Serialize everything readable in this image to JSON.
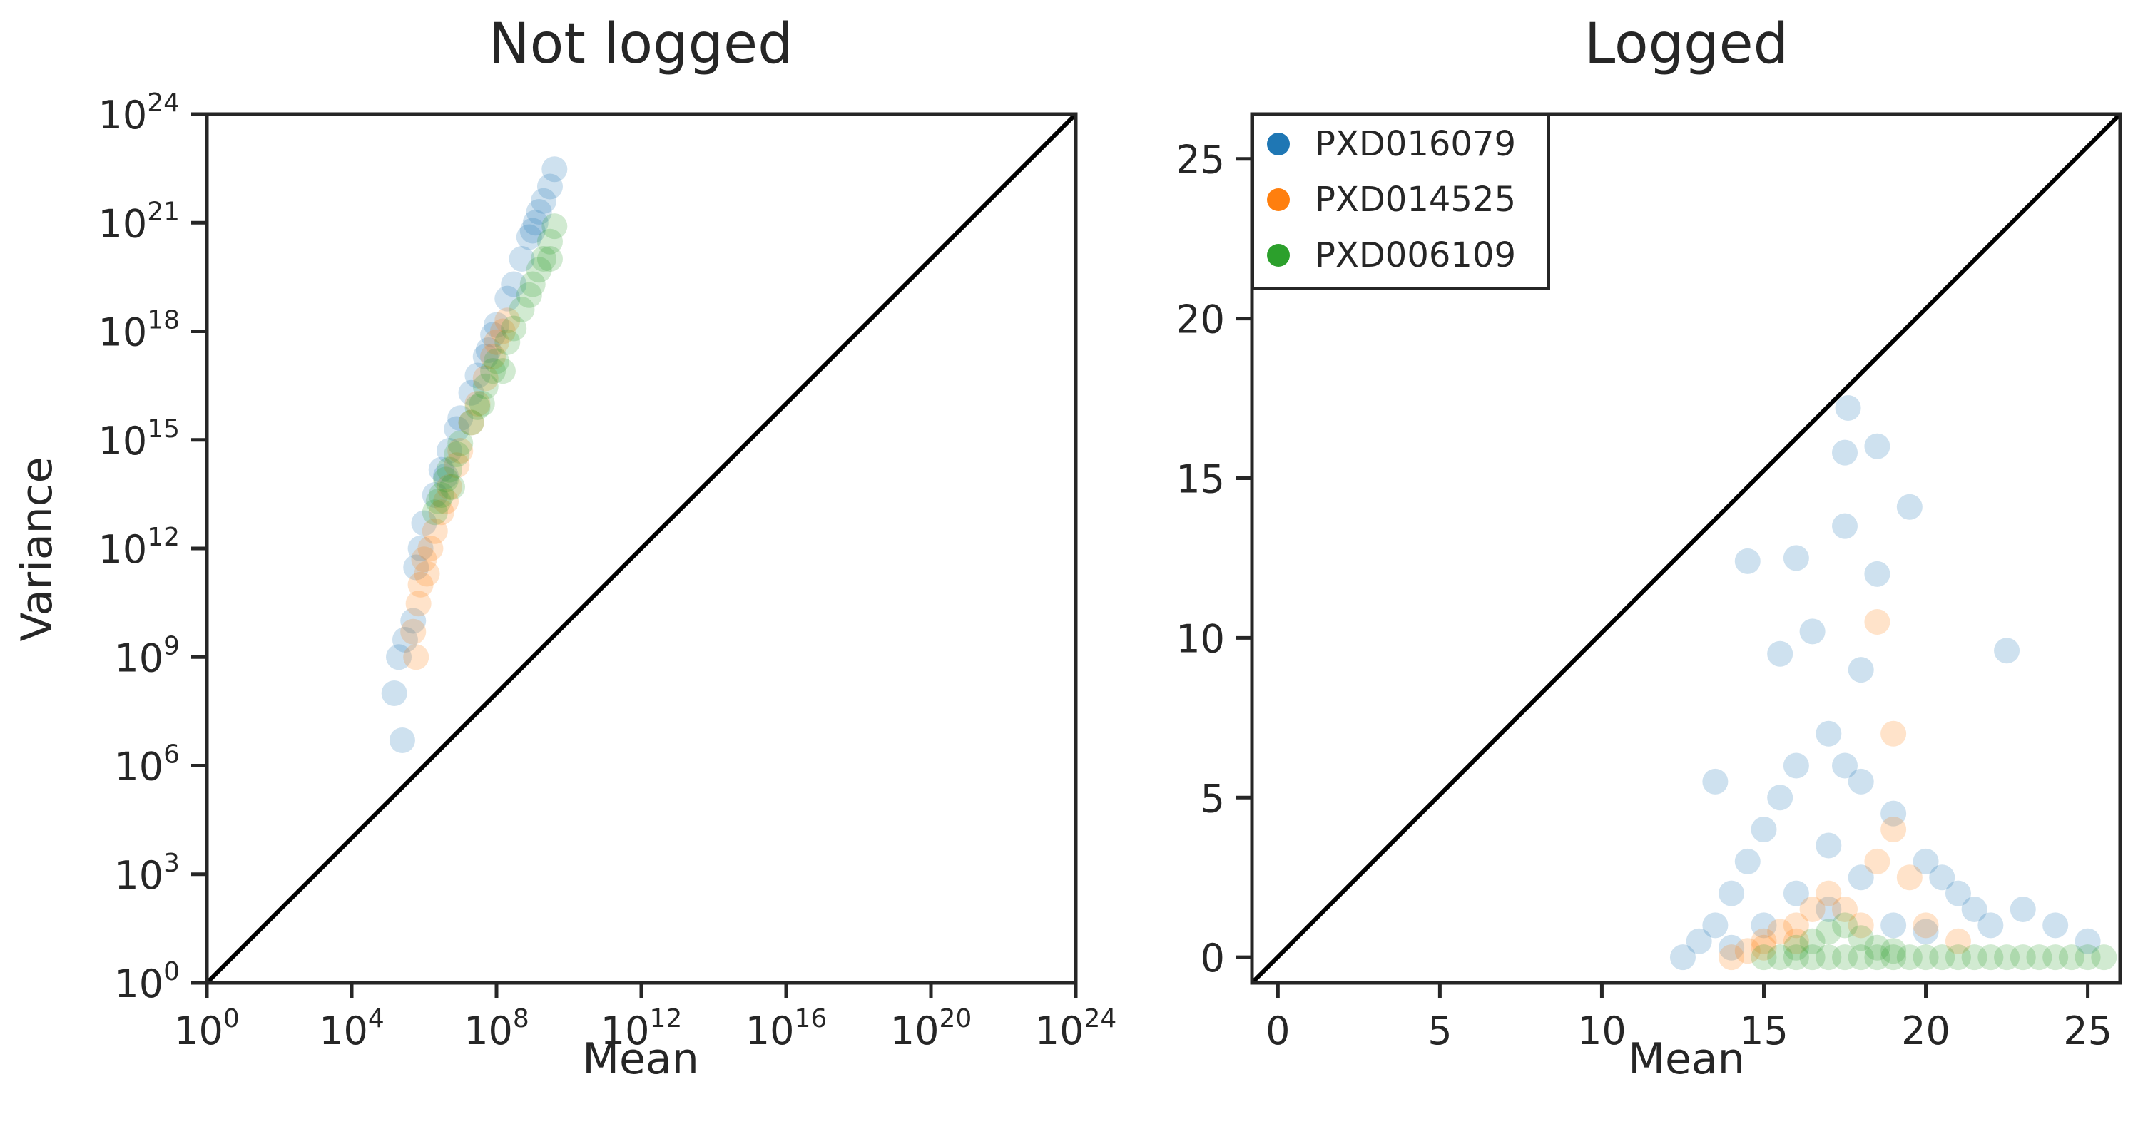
{
  "figure": {
    "ylabel": "Variance"
  },
  "chart_data": [
    {
      "type": "scatter",
      "title": "Not logged",
      "xlabel": "Mean",
      "ylabel": "Variance",
      "x_scale": "log",
      "y_scale": "log",
      "xlim": [
        1,
        1e+24
      ],
      "ylim": [
        1,
        1e+24
      ],
      "x_ticks": [
        {
          "base": "10",
          "exp": "0"
        },
        {
          "base": "10",
          "exp": "4"
        },
        {
          "base": "10",
          "exp": "8"
        },
        {
          "base": "10",
          "exp": "12"
        },
        {
          "base": "10",
          "exp": "16"
        },
        {
          "base": "10",
          "exp": "20"
        },
        {
          "base": "10",
          "exp": "24"
        }
      ],
      "y_ticks": [
        {
          "base": "10",
          "exp": "0"
        },
        {
          "base": "10",
          "exp": "3"
        },
        {
          "base": "10",
          "exp": "6"
        },
        {
          "base": "10",
          "exp": "9"
        },
        {
          "base": "10",
          "exp": "12"
        },
        {
          "base": "10",
          "exp": "15"
        },
        {
          "base": "10",
          "exp": "18"
        },
        {
          "base": "10",
          "exp": "21"
        },
        {
          "base": "10",
          "exp": "24"
        }
      ],
      "reference_line": "y = x",
      "series": [
        {
          "name": "PXD016079",
          "color": "#1f77b4",
          "points": [
            [
              300000.0,
              3000000000.0
            ],
            [
              500000.0,
              10000000000.0
            ],
            [
              600000.0,
              300000000000.0
            ],
            [
              800000.0,
              1000000000000.0
            ],
            [
              1000000.0,
              5000000000000.0
            ],
            [
              2000000.0,
              30000000000000.0
            ],
            [
              3000000.0,
              150000000000000.0
            ],
            [
              5000000.0,
              500000000000000.0
            ],
            [
              8000000.0,
              2000000000000000.0
            ],
            [
              10000000.0,
              4000000000000000.0
            ],
            [
              20000000.0,
              2e+16
            ],
            [
              30000000.0,
              6e+16
            ],
            [
              50000000.0,
              2e+17
            ],
            [
              80000000.0,
              8e+17
            ],
            [
              100000000.0,
              1.5e+18
            ],
            [
              200000000.0,
              8e+18
            ],
            [
              300000000.0,
              2e+19
            ],
            [
              500000000.0,
              1e+20
            ],
            [
              800000000.0,
              4e+20
            ],
            [
              1000000000.0,
              6e+20
            ],
            [
              1500000000.0,
              2e+21
            ],
            [
              2000000000.0,
              4e+21
            ],
            [
              3000000000.0,
              1e+22
            ],
            [
              4000000000.0,
              3e+22
            ],
            [
              200000.0,
              1000000000.0
            ],
            [
              150000.0,
              100000000.0
            ],
            [
              250000.0,
              5000000.0
            ],
            [
              4000000.0,
              100000000000000.0
            ],
            [
              60000000.0,
              3e+17
            ],
            [
              1200000000.0,
              1e+21
            ]
          ]
        },
        {
          "name": "PXD014525",
          "color": "#ff7f0e",
          "points": [
            [
              500000.0,
              5000000000.0
            ],
            [
              700000.0,
              30000000000.0
            ],
            [
              800000.0,
              100000000000.0
            ],
            [
              1000000.0,
              500000000000.0
            ],
            [
              1200000.0,
              200000000000.0
            ],
            [
              1500000.0,
              1000000000000.0
            ],
            [
              2000000.0,
              3000000000000.0
            ],
            [
              3000000.0,
              10000000000000.0
            ],
            [
              5000000.0,
              50000000000000.0
            ],
            [
              8000000.0,
              200000000000000.0
            ],
            [
              10000000.0,
              500000000000000.0
            ],
            [
              20000000.0,
              3000000000000000.0
            ],
            [
              30000000.0,
              1e+16
            ],
            [
              50000000.0,
              5e+16
            ],
            [
              80000000.0,
              2e+17
            ],
            [
              100000000.0,
              5e+17
            ],
            [
              150000000.0,
              1e+18
            ],
            [
              200000000.0,
              2e+18
            ],
            [
              600000.0,
              1000000000.0
            ],
            [
              4000000.0,
              20000000000000.0
            ]
          ]
        },
        {
          "name": "PXD006109",
          "color": "#2ca02c",
          "points": [
            [
              2000000.0,
              10000000000000.0
            ],
            [
              3000000.0,
              30000000000000.0
            ],
            [
              4000000.0,
              80000000000000.0
            ],
            [
              5000000.0,
              150000000000000.0
            ],
            [
              8000000.0,
              400000000000000.0
            ],
            [
              10000000.0,
              800000000000000.0
            ],
            [
              20000000.0,
              3000000000000000.0
            ],
            [
              30000000.0,
              8000000000000000.0
            ],
            [
              50000000.0,
              3e+16
            ],
            [
              80000000.0,
              8e+16
            ],
            [
              100000000.0,
              1.5e+17
            ],
            [
              200000000.0,
              5e+17
            ],
            [
              300000000.0,
              1.2e+18
            ],
            [
              500000000.0,
              4e+18
            ],
            [
              800000000.0,
              1e+19
            ],
            [
              1000000000.0,
              2e+19
            ],
            [
              1500000000.0,
              5e+19
            ],
            [
              2000000000.0,
              1e+20
            ],
            [
              3000000000.0,
              3e+20
            ],
            [
              4000000000.0,
              8e+20
            ],
            [
              3000000000.0,
              1e+20
            ],
            [
              150000000.0,
              8e+16
            ],
            [
              6000000.0,
              50000000000000.0
            ],
            [
              2500000.0,
              20000000000000.0
            ],
            [
              40000000.0,
              1e+16
            ]
          ]
        }
      ]
    },
    {
      "type": "scatter",
      "title": "Logged",
      "xlabel": "Mean",
      "ylabel": "",
      "xlim": [
        -0.8,
        26
      ],
      "ylim": [
        -0.8,
        26.4
      ],
      "x_ticks": [
        "0",
        "5",
        "10",
        "15",
        "20",
        "25"
      ],
      "y_ticks": [
        "0",
        "5",
        "10",
        "15",
        "20",
        "25"
      ],
      "reference_line": "y = x",
      "legend": {
        "placement": "top-left",
        "entries": [
          {
            "label": "PXD016079",
            "color": "#1f77b4"
          },
          {
            "label": "PXD014525",
            "color": "#ff7f0e"
          },
          {
            "label": "PXD006109",
            "color": "#2ca02c"
          }
        ]
      },
      "series": [
        {
          "name": "PXD016079",
          "color": "#1f77b4",
          "points": [
            [
              12.5,
              0
            ],
            [
              13.0,
              0.5
            ],
            [
              13.5,
              1.0
            ],
            [
              13.5,
              5.5
            ],
            [
              14.0,
              2.0
            ],
            [
              14.5,
              3.0
            ],
            [
              14.5,
              12.4
            ],
            [
              15.0,
              4.0
            ],
            [
              15.5,
              5.0
            ],
            [
              15.5,
              9.5
            ],
            [
              16.0,
              6.0
            ],
            [
              16.0,
              12.5
            ],
            [
              16.5,
              10.2
            ],
            [
              17.0,
              7.0
            ],
            [
              17.0,
              3.5
            ],
            [
              17.5,
              6.0
            ],
            [
              17.5,
              13.5
            ],
            [
              17.5,
              15.8
            ],
            [
              17.6,
              17.2
            ],
            [
              18.0,
              5.5
            ],
            [
              18.0,
              9.0
            ],
            [
              18.5,
              12.0
            ],
            [
              18.5,
              16.0
            ],
            [
              19.0,
              4.5
            ],
            [
              19.5,
              14.1
            ],
            [
              20.0,
              3.0
            ],
            [
              20.5,
              2.5
            ],
            [
              21.0,
              2.0
            ],
            [
              21.5,
              1.5
            ],
            [
              22.0,
              1.0
            ],
            [
              22.5,
              9.6
            ],
            [
              23.0,
              1.5
            ],
            [
              24.0,
              1.0
            ],
            [
              25.0,
              0.5
            ],
            [
              16.0,
              2.0
            ],
            [
              17.0,
              1.5
            ],
            [
              18.0,
              2.5
            ],
            [
              19.0,
              1.0
            ],
            [
              20.0,
              0.8
            ],
            [
              15.0,
              1.0
            ],
            [
              14.0,
              0.3
            ]
          ]
        },
        {
          "name": "PXD014525",
          "color": "#ff7f0e",
          "points": [
            [
              14.0,
              0
            ],
            [
              14.5,
              0.2
            ],
            [
              15.0,
              0.5
            ],
            [
              15.5,
              0.8
            ],
            [
              16.0,
              1.0
            ],
            [
              16.5,
              1.5
            ],
            [
              17.0,
              2.0
            ],
            [
              17.5,
              1.5
            ],
            [
              18.0,
              1.0
            ],
            [
              18.5,
              3.0
            ],
            [
              18.5,
              10.5
            ],
            [
              19.0,
              4.0
            ],
            [
              19.0,
              7.0
            ],
            [
              19.5,
              2.5
            ],
            [
              20.0,
              1.0
            ],
            [
              21.0,
              0.5
            ],
            [
              15.0,
              0.3
            ],
            [
              16.0,
              0.5
            ]
          ]
        },
        {
          "name": "PXD006109",
          "color": "#2ca02c",
          "points": [
            [
              15.0,
              0
            ],
            [
              15.5,
              0
            ],
            [
              16.0,
              0
            ],
            [
              16.5,
              0
            ],
            [
              17.0,
              0
            ],
            [
              17.5,
              0
            ],
            [
              18.0,
              0
            ],
            [
              18.5,
              0
            ],
            [
              19.0,
              0
            ],
            [
              19.5,
              0
            ],
            [
              20.0,
              0
            ],
            [
              20.5,
              0
            ],
            [
              21.0,
              0
            ],
            [
              21.5,
              0
            ],
            [
              22.0,
              0
            ],
            [
              22.5,
              0
            ],
            [
              23.0,
              0
            ],
            [
              23.5,
              0
            ],
            [
              24.0,
              0
            ],
            [
              24.5,
              0
            ],
            [
              25.0,
              0
            ],
            [
              25.5,
              0
            ],
            [
              16.5,
              0.5
            ],
            [
              17.0,
              0.8
            ],
            [
              17.5,
              1.0
            ],
            [
              18.0,
              0.6
            ],
            [
              18.5,
              0.3
            ],
            [
              16.0,
              0.3
            ],
            [
              19.0,
              0.2
            ]
          ]
        }
      ]
    }
  ]
}
